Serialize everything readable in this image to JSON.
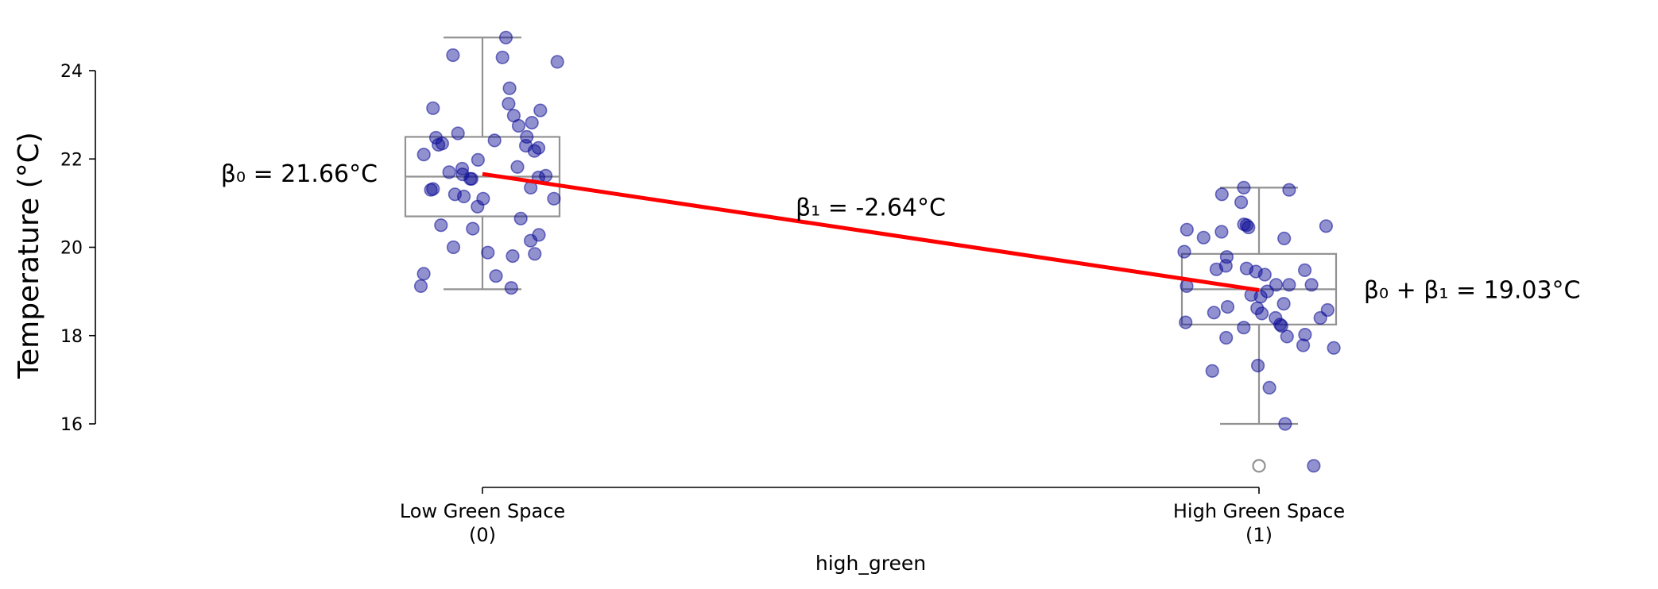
{
  "chart_data": {
    "type": "box",
    "title": "",
    "xlabel": "high_green",
    "ylabel": "Temperature (°C)",
    "ylim": [
      14.4,
      25.5
    ],
    "y_ticks": [
      16,
      18,
      20,
      22,
      24
    ],
    "y_tick_labels": [
      "16",
      "18",
      "20",
      "22",
      "24"
    ],
    "categories": [
      "Low Green Space",
      "High Green Space"
    ],
    "category_codes": [
      "(0)",
      "(1)"
    ],
    "x_values": [
      0,
      1
    ],
    "grid": false,
    "legend": "none",
    "colors": {
      "points": "#0b0b95",
      "box": "#929292",
      "fit_line": "#ff0000"
    },
    "boxes": [
      {
        "category": "Low Green Space",
        "q1": 20.7,
        "median": 21.6,
        "q3": 22.5,
        "whisker_low": 19.05,
        "whisker_high": 24.75,
        "outliers": []
      },
      {
        "category": "High Green Space",
        "q1": 18.25,
        "median": 19.05,
        "q3": 19.85,
        "whisker_low": 16.0,
        "whisker_high": 21.35,
        "outliers": [
          15.05
        ]
      }
    ],
    "points": [
      {
        "category": "Low Green Space",
        "values": [
          24.75,
          24.35,
          24.3,
          24.2,
          23.6,
          23.25,
          23.15,
          23.1,
          22.98,
          22.82,
          22.75,
          22.58,
          22.5,
          22.48,
          22.42,
          22.35,
          22.32,
          22.3,
          22.25,
          22.18,
          22.1,
          21.98,
          21.82,
          21.78,
          21.7,
          21.65,
          21.62,
          21.58,
          21.55,
          21.55,
          21.35,
          21.32,
          21.3,
          21.2,
          21.15,
          21.1,
          21.1,
          20.92,
          20.65,
          20.5,
          20.42,
          20.28,
          20.15,
          20.0,
          19.88,
          19.85,
          19.8,
          19.4,
          19.35,
          19.12,
          19.08
        ]
      },
      {
        "category": "High Green Space",
        "values": [
          21.35,
          21.3,
          21.2,
          21.02,
          20.52,
          20.5,
          20.48,
          20.45,
          20.4,
          20.35,
          20.22,
          20.2,
          19.9,
          19.78,
          19.58,
          19.52,
          19.5,
          19.48,
          19.45,
          19.38,
          19.15,
          19.15,
          19.15,
          19.12,
          19.0,
          18.92,
          18.88,
          18.72,
          18.65,
          18.62,
          18.58,
          18.52,
          18.5,
          18.4,
          18.4,
          18.3,
          18.25,
          18.22,
          18.18,
          18.02,
          17.98,
          17.95,
          17.78,
          17.72,
          17.32,
          17.2,
          16.82,
          16.0,
          15.05
        ]
      }
    ],
    "fit_line": {
      "x": [
        0,
        1
      ],
      "y": [
        21.66,
        19.03
      ]
    },
    "annotations": [
      {
        "text": "β₀ = 21.66°C",
        "x": -0.135,
        "y": 21.66,
        "anchor": "end"
      },
      {
        "text": "β₁ = -2.64°C",
        "x": 0.5,
        "y": 20.9,
        "anchor": "middle"
      },
      {
        "text": "β₀ + β₁ = 19.03°C",
        "x": 1.135,
        "y": 19.03,
        "anchor": "start"
      }
    ]
  }
}
